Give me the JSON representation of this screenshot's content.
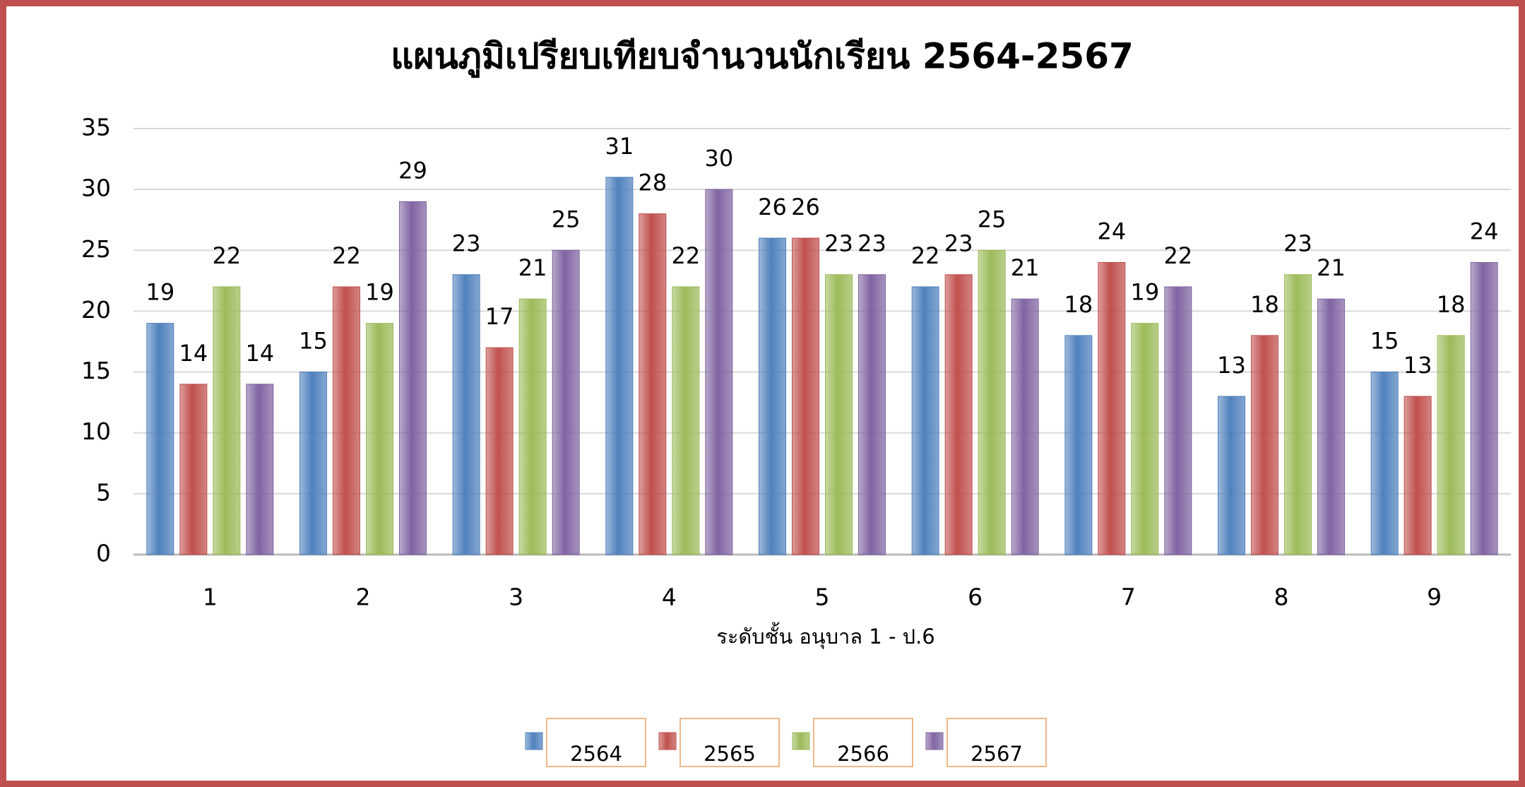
{
  "chart_data": {
    "type": "bar",
    "title": "แผนภูมิเปรียบเทียบจำนวนนักเรียน 2564-2567",
    "x_label": "ระดับชั้น อนุบาล 1 - ป.6",
    "categories": [
      "1",
      "2",
      "3",
      "4",
      "5",
      "6",
      "7",
      "8",
      "9"
    ],
    "series": [
      {
        "name": "2564",
        "color": "#4f81bd",
        "values": [
          19,
          15,
          23,
          31,
          26,
          22,
          18,
          13,
          15
        ]
      },
      {
        "name": "2565",
        "color": "#c0504d",
        "values": [
          14,
          22,
          17,
          28,
          26,
          23,
          24,
          18,
          13
        ]
      },
      {
        "name": "2566",
        "color": "#9bbb59",
        "values": [
          22,
          19,
          21,
          22,
          23,
          25,
          19,
          23,
          18
        ]
      },
      {
        "name": "2567",
        "color": "#8064a2",
        "values": [
          14,
          29,
          25,
          30,
          23,
          21,
          22,
          21,
          24
        ]
      }
    ],
    "ylim": [
      0,
      35
    ],
    "yticks": [
      0,
      5,
      10,
      15,
      20,
      25,
      30,
      35
    ],
    "grid": true
  }
}
